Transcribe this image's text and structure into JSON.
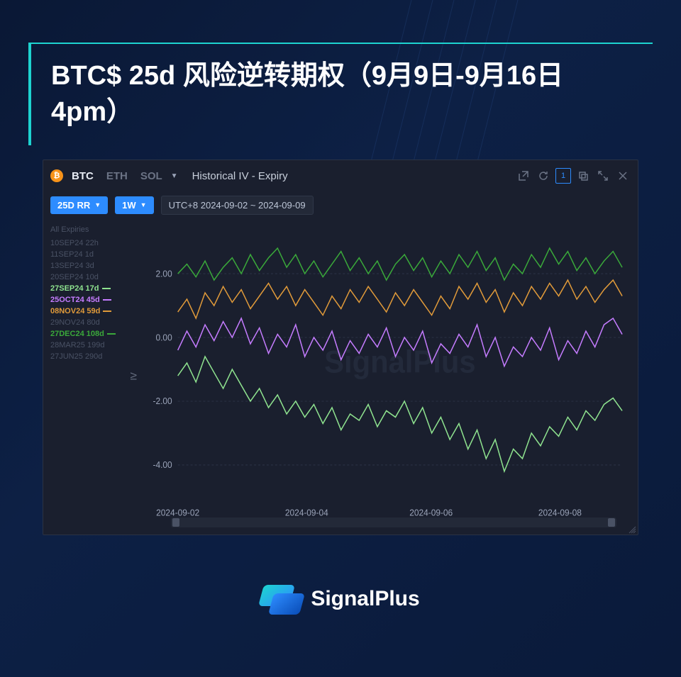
{
  "title": "BTC$ 25d 风险逆转期权（9月9日-9月16日 4pm）",
  "brand": "SignalPlus",
  "header": {
    "tabs": [
      {
        "label": "BTC",
        "active": true,
        "icon": "₿"
      },
      {
        "label": "ETH",
        "active": false
      },
      {
        "label": "SOL",
        "active": false
      }
    ],
    "title": "Historical IV - Expiry",
    "window_number": "1"
  },
  "toolbar": {
    "metric": "25D RR",
    "range": "1W",
    "date_range": "UTC+8 2024-09-02 ~ 2024-09-09"
  },
  "legend": {
    "all": "All Expiries",
    "items": [
      {
        "label": "10SEP24 22h",
        "color": "#4a5265",
        "active": false
      },
      {
        "label": "11SEP24 1d",
        "color": "#4a5265",
        "active": false
      },
      {
        "label": "13SEP24 3d",
        "color": "#4a5265",
        "active": false
      },
      {
        "label": "20SEP24 10d",
        "color": "#4a5265",
        "active": false
      },
      {
        "label": "27SEP24 17d",
        "color": "#8fe38f",
        "active": true
      },
      {
        "label": "25OCT24 45d",
        "color": "#c57cff",
        "active": true
      },
      {
        "label": "08NOV24 59d",
        "color": "#e09a3a",
        "active": true
      },
      {
        "label": "29NOV24 80d",
        "color": "#4a5265",
        "active": false
      },
      {
        "label": "27DEC24 108d",
        "color": "#3aa83a",
        "active": true
      },
      {
        "label": "28MAR25 199d",
        "color": "#4a5265",
        "active": false
      },
      {
        "label": "27JUN25 290d",
        "color": "#4a5265",
        "active": false
      }
    ]
  },
  "chart": {
    "watermark": "SignalPlus",
    "ylabel": "IV",
    "ylim": [
      -5,
      3.5
    ],
    "yticks": [
      -4,
      -2,
      0,
      2
    ],
    "yticklabels": [
      "-4.00",
      "-2.00",
      "0.00",
      "2.00"
    ],
    "xticks": [
      0,
      0.29,
      0.57,
      0.86
    ],
    "xticklabels": [
      "2024-09-02",
      "2024-09-04",
      "2024-09-06",
      "2024-09-08"
    ],
    "grid_color": "#2a3244",
    "background": "#1a1f2e",
    "series": [
      {
        "name": "27DEC24",
        "color": "#3aa83a",
        "data": [
          2.0,
          2.3,
          1.9,
          2.4,
          1.8,
          2.2,
          2.5,
          2.0,
          2.6,
          2.1,
          2.5,
          2.8,
          2.2,
          2.6,
          2.0,
          2.4,
          1.9,
          2.3,
          2.7,
          2.1,
          2.5,
          2.0,
          2.4,
          1.8,
          2.3,
          2.6,
          2.1,
          2.5,
          1.9,
          2.4,
          2.0,
          2.6,
          2.2,
          2.7,
          2.1,
          2.5,
          1.8,
          2.3,
          2.0,
          2.6,
          2.2,
          2.8,
          2.3,
          2.7,
          2.1,
          2.5,
          2.0,
          2.4,
          2.7,
          2.2
        ]
      },
      {
        "name": "08NOV24",
        "color": "#e09a3a",
        "data": [
          0.8,
          1.2,
          0.6,
          1.4,
          1.0,
          1.6,
          1.1,
          1.5,
          0.9,
          1.3,
          1.7,
          1.2,
          1.6,
          1.0,
          1.5,
          1.1,
          0.7,
          1.3,
          0.9,
          1.5,
          1.1,
          1.6,
          1.2,
          0.8,
          1.4,
          1.0,
          1.5,
          1.1,
          0.7,
          1.3,
          0.9,
          1.6,
          1.2,
          1.7,
          1.1,
          1.5,
          0.8,
          1.4,
          1.0,
          1.6,
          1.2,
          1.7,
          1.3,
          1.8,
          1.2,
          1.6,
          1.1,
          1.5,
          1.8,
          1.3
        ]
      },
      {
        "name": "25OCT24",
        "color": "#c57cff",
        "data": [
          -0.4,
          0.2,
          -0.3,
          0.4,
          -0.1,
          0.5,
          0.0,
          0.6,
          -0.2,
          0.3,
          -0.5,
          0.1,
          -0.3,
          0.4,
          -0.6,
          0.0,
          -0.4,
          0.2,
          -0.7,
          -0.1,
          -0.5,
          0.1,
          -0.3,
          0.3,
          -0.6,
          0.0,
          -0.4,
          0.2,
          -0.8,
          -0.2,
          -0.5,
          0.1,
          -0.3,
          0.4,
          -0.6,
          0.0,
          -0.9,
          -0.3,
          -0.6,
          0.0,
          -0.4,
          0.3,
          -0.7,
          -0.1,
          -0.5,
          0.2,
          -0.3,
          0.4,
          0.6,
          0.1
        ]
      },
      {
        "name": "27SEP24",
        "color": "#8fe38f",
        "data": [
          -1.2,
          -0.8,
          -1.4,
          -0.6,
          -1.1,
          -1.6,
          -1.0,
          -1.5,
          -2.0,
          -1.6,
          -2.2,
          -1.8,
          -2.4,
          -2.0,
          -2.5,
          -2.1,
          -2.7,
          -2.2,
          -2.9,
          -2.4,
          -2.6,
          -2.1,
          -2.8,
          -2.3,
          -2.5,
          -2.0,
          -2.7,
          -2.2,
          -3.0,
          -2.5,
          -3.2,
          -2.7,
          -3.5,
          -2.9,
          -3.8,
          -3.2,
          -4.2,
          -3.5,
          -3.8,
          -3.0,
          -3.4,
          -2.8,
          -3.1,
          -2.5,
          -2.9,
          -2.3,
          -2.6,
          -2.1,
          -1.9,
          -2.3
        ]
      }
    ]
  }
}
